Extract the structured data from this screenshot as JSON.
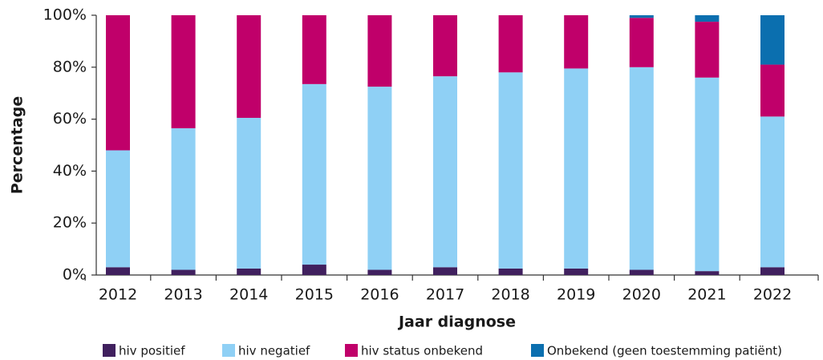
{
  "chart_data": {
    "type": "bar",
    "stacked": true,
    "x_label": "Jaar diagnose",
    "y_label": "Percentage",
    "categories": [
      "2012",
      "2013",
      "2014",
      "2015",
      "2016",
      "2017",
      "2018",
      "2019",
      "2020",
      "2021",
      "2022"
    ],
    "series": [
      {
        "name": "hiv positief",
        "color": "#40205e",
        "values": [
          3,
          2,
          2.5,
          4,
          2,
          3,
          2.5,
          2.5,
          2,
          1.5,
          3
        ]
      },
      {
        "name": "hiv negatief",
        "color": "#8fd0f5",
        "values": [
          45,
          54.5,
          58,
          69.5,
          70.5,
          73.5,
          75.5,
          77,
          78,
          74.5,
          58
        ]
      },
      {
        "name": "hiv status onbekend",
        "color": "#c0006a",
        "values": [
          52,
          43.5,
          39.5,
          26.5,
          27.5,
          23.5,
          22,
          20.5,
          19,
          21.5,
          20
        ]
      },
      {
        "name": "Onbekend (geen toestemming patiënt)",
        "color": "#0b6faf",
        "values": [
          0,
          0,
          0,
          0,
          0,
          0,
          0,
          0,
          1,
          2.5,
          19
        ]
      }
    ],
    "ylim": [
      0,
      100
    ],
    "yticks": [
      {
        "value": 0,
        "label": "0%"
      },
      {
        "value": 20,
        "label": "20%"
      },
      {
        "value": 40,
        "label": "40%"
      },
      {
        "value": 60,
        "label": "60%"
      },
      {
        "value": 80,
        "label": "80%"
      },
      {
        "value": 100,
        "label": "100%"
      }
    ]
  }
}
